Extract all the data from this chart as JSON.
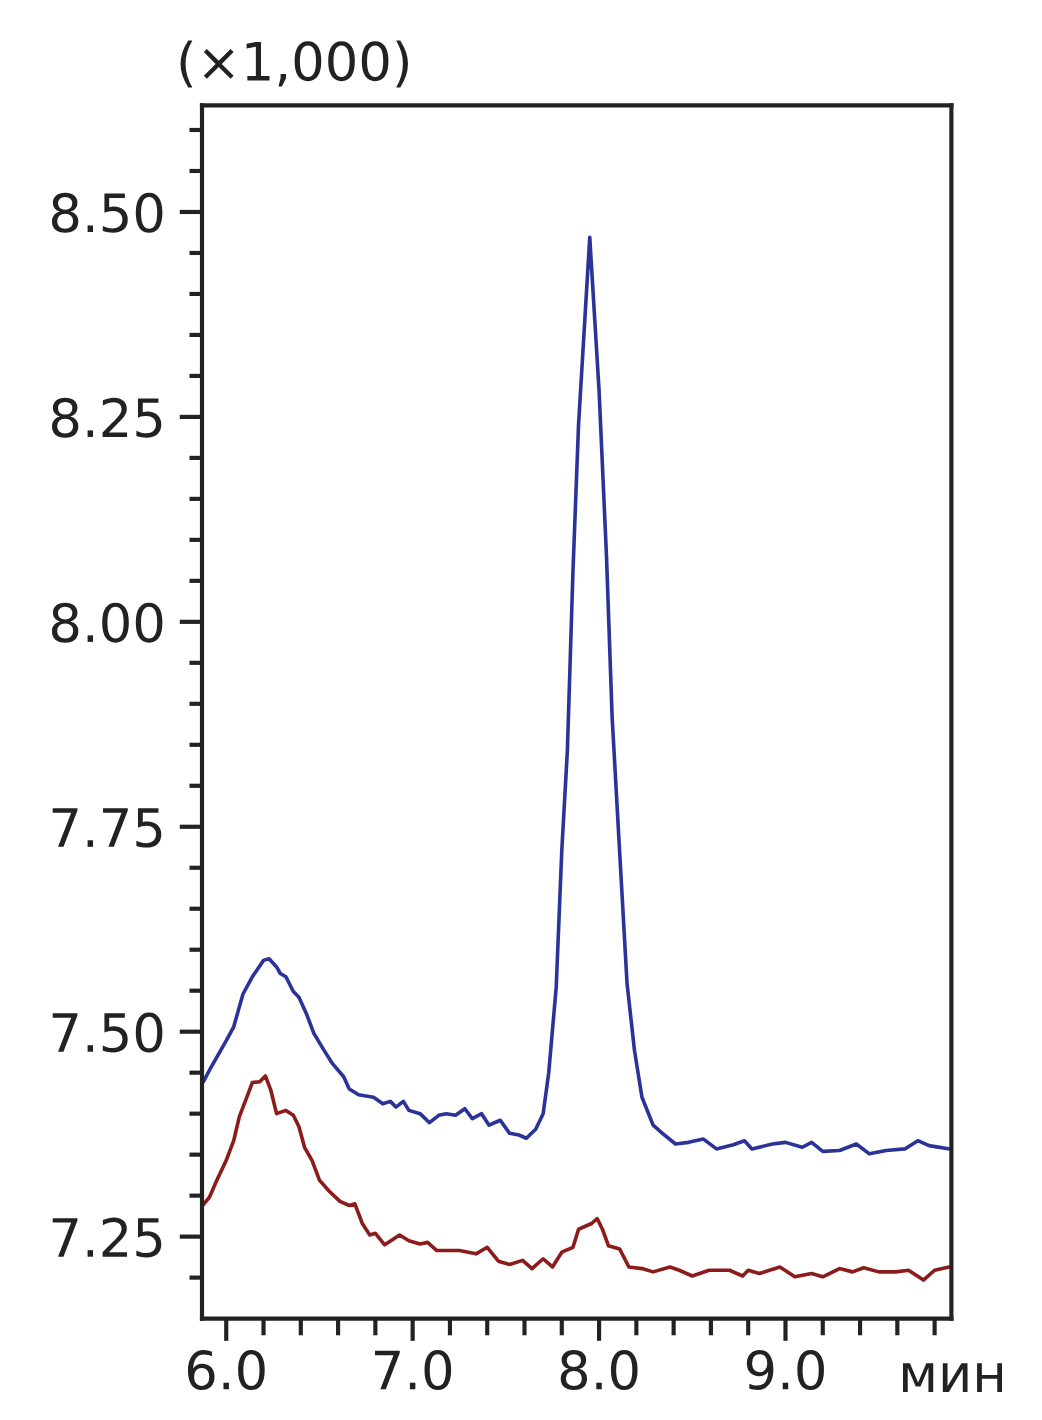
{
  "chart_data": {
    "type": "line",
    "ylabel": "(×1,000)",
    "xlabel": "мин",
    "xlim": [
      5.87,
      9.89
    ],
    "ylim": [
      7.15,
      8.63
    ],
    "xticks": [
      {
        "value": 6,
        "label": "6.0"
      },
      {
        "value": 6.2,
        "label": null
      },
      {
        "value": 6.4,
        "label": null
      },
      {
        "value": 6.6,
        "label": null
      },
      {
        "value": 6.8,
        "label": null
      },
      {
        "value": 7,
        "label": "7.0"
      },
      {
        "value": 7.2,
        "label": null
      },
      {
        "value": 7.4,
        "label": null
      },
      {
        "value": 7.6,
        "label": null
      },
      {
        "value": 7.8,
        "label": null
      },
      {
        "value": 8,
        "label": "8.0"
      },
      {
        "value": 8.2,
        "label": null
      },
      {
        "value": 8.4,
        "label": null
      },
      {
        "value": 8.6,
        "label": null
      },
      {
        "value": 8.8,
        "label": null
      },
      {
        "value": 9,
        "label": "9.0"
      },
      {
        "value": 9.2,
        "label": null
      },
      {
        "value": 9.4,
        "label": null
      },
      {
        "value": 9.6,
        "label": null
      },
      {
        "value": 9.8,
        "label": null
      }
    ],
    "yticks": [
      {
        "value": 7.2,
        "label": null
      },
      7.25,
      {
        "value": 7.3,
        "label": null
      },
      {
        "value": 7.35,
        "label": null
      },
      {
        "value": 7.4,
        "label": null
      },
      {
        "value": 7.45,
        "label": null
      },
      {
        "value": 7.5,
        "label": "7.50"
      },
      {
        "value": 7.55,
        "label": null
      },
      {
        "value": 7.6,
        "label": null
      },
      {
        "value": 7.65,
        "label": null
      },
      {
        "value": 7.7,
        "label": null
      },
      7.75,
      {
        "value": 7.8,
        "label": null
      },
      {
        "value": 7.85,
        "label": null
      },
      {
        "value": 7.9,
        "label": null
      },
      {
        "value": 7.95,
        "label": null
      },
      {
        "value": 8,
        "label": "8.00"
      },
      {
        "value": 8.05,
        "label": null
      },
      {
        "value": 8.1,
        "label": null
      },
      {
        "value": 8.15,
        "label": null
      },
      {
        "value": 8.2,
        "label": null
      },
      8.25,
      {
        "value": 8.3,
        "label": null
      },
      {
        "value": 8.35,
        "label": null
      },
      {
        "value": 8.4,
        "label": null
      },
      {
        "value": 8.45,
        "label": null
      },
      {
        "value": 8.5,
        "label": "8.50"
      },
      {
        "value": 8.55,
        "label": null
      },
      {
        "value": 8.6,
        "label": null
      }
    ],
    "series": [
      {
        "color": "#2b3399",
        "x": [
          5.88,
          5.91,
          6.0,
          6.04,
          6.09,
          6.14,
          6.2,
          6.23,
          6.27,
          6.29,
          6.32,
          6.36,
          6.39,
          6.43,
          6.47,
          6.52,
          6.57,
          6.63,
          6.66,
          6.71,
          6.79,
          6.84,
          6.88,
          6.91,
          6.95,
          6.98,
          7.04,
          7.09,
          7.14,
          7.18,
          7.23,
          7.28,
          7.32,
          7.37,
          7.41,
          7.47,
          7.52,
          7.57,
          7.61,
          7.66,
          7.7,
          7.73,
          7.77,
          7.8,
          7.83,
          7.86,
          7.89,
          7.95,
          8.0,
          8.04,
          8.07,
          8.11,
          8.15,
          8.19,
          8.23,
          8.29,
          8.34,
          8.41,
          8.48,
          8.56,
          8.63,
          8.72,
          8.78,
          8.82,
          8.93,
          9.0,
          9.09,
          9.14,
          9.2,
          9.29,
          9.38,
          9.45,
          9.54,
          9.64,
          9.71,
          9.77,
          9.88
        ],
        "values": [
          7.44,
          7.453,
          7.489,
          7.506,
          7.546,
          7.567,
          7.587,
          7.589,
          7.579,
          7.571,
          7.567,
          7.549,
          7.542,
          7.522,
          7.498,
          7.479,
          7.461,
          7.445,
          7.43,
          7.423,
          7.42,
          7.412,
          7.415,
          7.408,
          7.415,
          7.404,
          7.4,
          7.389,
          7.398,
          7.4,
          7.398,
          7.406,
          7.394,
          7.4,
          7.386,
          7.392,
          7.376,
          7.374,
          7.37,
          7.381,
          7.4,
          7.45,
          7.554,
          7.721,
          7.843,
          8.062,
          8.241,
          8.469,
          8.282,
          8.079,
          7.884,
          7.721,
          7.559,
          7.477,
          7.42,
          7.386,
          7.376,
          7.363,
          7.365,
          7.369,
          7.357,
          7.362,
          7.367,
          7.357,
          7.363,
          7.365,
          7.359,
          7.365,
          7.354,
          7.355,
          7.363,
          7.351,
          7.355,
          7.357,
          7.367,
          7.361,
          7.357
        ]
      },
      {
        "color": "#8c1c1c",
        "x": [
          5.88,
          5.91,
          5.95,
          6.0,
          6.04,
          6.07,
          6.11,
          6.14,
          6.18,
          6.21,
          6.24,
          6.27,
          6.32,
          6.36,
          6.39,
          6.42,
          6.46,
          6.5,
          6.55,
          6.61,
          6.66,
          6.69,
          6.73,
          6.77,
          6.8,
          6.85,
          6.93,
          6.98,
          7.04,
          7.08,
          7.13,
          7.25,
          7.34,
          7.4,
          7.46,
          7.52,
          7.59,
          7.64,
          7.7,
          7.75,
          7.8,
          7.86,
          7.89,
          7.96,
          7.99,
          8.02,
          8.05,
          8.11,
          8.16,
          8.23,
          8.29,
          8.38,
          8.43,
          8.5,
          8.59,
          8.7,
          8.77,
          8.8,
          8.86,
          8.97,
          9.05,
          9.14,
          9.2,
          9.29,
          9.36,
          9.42,
          9.5,
          9.59,
          9.66,
          9.74,
          9.8,
          9.88
        ],
        "values": [
          7.29,
          7.298,
          7.319,
          7.343,
          7.367,
          7.396,
          7.42,
          7.438,
          7.439,
          7.446,
          7.428,
          7.4,
          7.404,
          7.398,
          7.384,
          7.359,
          7.343,
          7.319,
          7.306,
          7.293,
          7.288,
          7.29,
          7.266,
          7.252,
          7.254,
          7.24,
          7.252,
          7.245,
          7.241,
          7.243,
          7.233,
          7.233,
          7.229,
          7.237,
          7.22,
          7.216,
          7.221,
          7.211,
          7.223,
          7.213,
          7.231,
          7.237,
          7.259,
          7.266,
          7.272,
          7.258,
          7.239,
          7.235,
          7.213,
          7.211,
          7.207,
          7.213,
          7.209,
          7.202,
          7.209,
          7.209,
          7.202,
          7.209,
          7.205,
          7.213,
          7.201,
          7.205,
          7.201,
          7.211,
          7.207,
          7.212,
          7.207,
          7.207,
          7.209,
          7.197,
          7.209,
          7.213
        ]
      }
    ]
  }
}
